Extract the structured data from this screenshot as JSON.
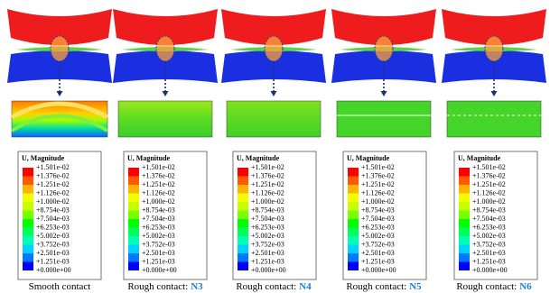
{
  "legend": {
    "title": "U, Magnitude",
    "labels": [
      "+1.501e-02",
      "+1.376e-02",
      "+1.251e-02",
      "+1.126e-02",
      "+1.000e-02",
      "+8.754e-03",
      "+7.504e-03",
      "+6.253e-03",
      "+5.002e-03",
      "+3.752e-03",
      "+2.501e-03",
      "+1.251e-03",
      "+0.000e+00"
    ],
    "colors": [
      "#ff0000",
      "#ff5a00",
      "#ffb400",
      "#f0ff00",
      "#c8ff00",
      "#78ff00",
      "#00ff00",
      "#00ff5a",
      "#00ffb4",
      "#00d2ff",
      "#0078ff",
      "#0000ff"
    ]
  },
  "panels": [
    {
      "caption": "Smooth contact"
    },
    {
      "caption": "Rough contact:",
      "highlight": "N3"
    },
    {
      "caption": "Rough contact:",
      "highlight": "N4"
    },
    {
      "caption": "Rough contact:",
      "highlight": "N5"
    },
    {
      "caption": "Rough contact:",
      "highlight": "N6"
    }
  ]
}
